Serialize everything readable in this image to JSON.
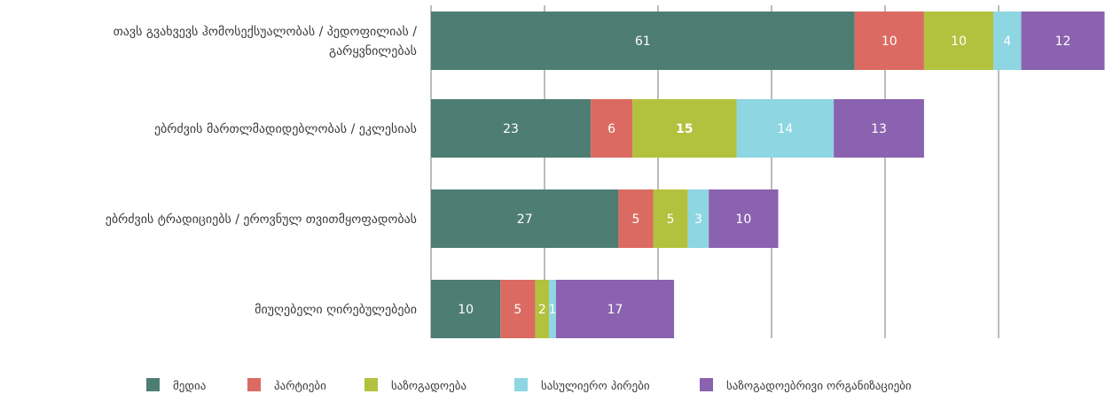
{
  "chart_data": {
    "type": "bar",
    "orientation": "horizontal",
    "stacked": true,
    "grid": true,
    "legend_position": "bottom",
    "categories": [
      "თავს გვახვევს ჰომოსექსუალობას / პედოფილიას / გარყვნილებას",
      "ებრძვის მართლმადიდებლობას / ეკლესიას",
      "ებრძვის ტრადიციებს / ეროვნულ თვითმყოფადობას",
      "მიუღებელი ღირებულებები"
    ],
    "series": [
      {
        "name": "მედია",
        "color": "#4e7d74",
        "values": [
          61,
          23,
          27,
          10
        ]
      },
      {
        "name": "პარტიები",
        "color": "#db6b62",
        "values": [
          10,
          6,
          5,
          5
        ]
      },
      {
        "name": "საზოგადოება",
        "color": "#b3c23e",
        "values": [
          10,
          15,
          5,
          2
        ]
      },
      {
        "name": "სასულიერო პირები",
        "color": "#8dd6e2",
        "values": [
          4,
          14,
          3,
          1
        ]
      },
      {
        "name": "საზოგადოებრივი ორგანიზაციები",
        "color": "#8b62b0",
        "values": [
          12,
          13,
          10,
          17
        ]
      }
    ]
  }
}
